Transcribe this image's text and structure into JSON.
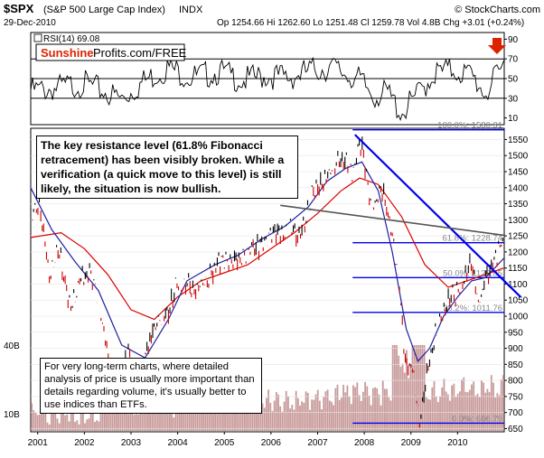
{
  "header": {
    "ticker": "$SPX",
    "name": "(S&P 500 Large Cap Index)",
    "exchange": "INDX",
    "date": "29-Dec-2010",
    "ohlc": "Op 1254.66 Hi 1262.60 Lo 1251.48 Cl 1259.78 Vol 4.8B Chg +3.01 (+0.24%)",
    "copyright": "© StockCharts.com"
  },
  "watermark": {
    "brand": "Sunshine",
    "rest": "Profits.com/FREE"
  },
  "colors": {
    "price_up": "#000000",
    "price_down": "#cc0000",
    "ma_red": "#dd0000",
    "ma_blue": "#2020a0",
    "trend_blue": "#0000ee",
    "volume": "#c89a9a",
    "arrow": "#dd2200"
  },
  "notes": {
    "top": "The key resistance level (61.8% Fibonacci retracement) has been visibly broken. While a verification (a quick  move to this level) is still likely, the situation is now bullish.",
    "bottom": "For very long-term charts, where detailed analysis of price is usually more important than details regarding volume, it's usually better to use indices than ETFs."
  },
  "chart_data": [
    {
      "type": "line",
      "title": "RSI(14) 69.08",
      "y_ticks": [
        10,
        30,
        50,
        70,
        90
      ],
      "ylim": [
        5,
        95
      ],
      "reference_levels": [
        30,
        50,
        70
      ],
      "x": [
        2001.0,
        2001.5,
        2002.0,
        2002.5,
        2002.8,
        2003.3,
        2003.8,
        2004.3,
        2004.9,
        2005.4,
        2005.9,
        2006.4,
        2006.9,
        2007.3,
        2007.6,
        2007.9,
        2008.2,
        2008.5,
        2008.8,
        2009.1,
        2009.5,
        2009.9,
        2010.3,
        2010.6,
        2010.99
      ],
      "values": [
        45,
        48,
        52,
        42,
        36,
        55,
        68,
        58,
        64,
        55,
        60,
        58,
        66,
        68,
        62,
        55,
        40,
        42,
        22,
        38,
        62,
        66,
        60,
        42,
        69.08
      ]
    },
    {
      "type": "line",
      "title": "",
      "y_ticks": [
        650,
        700,
        750,
        800,
        850,
        900,
        950,
        1000,
        1050,
        1100,
        1150,
        1200,
        1250,
        1300,
        1350,
        1400,
        1450,
        1500,
        1550
      ],
      "ylim": [
        640,
        1585
      ],
      "x_ticks": [
        "2001",
        "2002",
        "2003",
        "2004",
        "2005",
        "2006",
        "2007",
        "2008",
        "2009",
        "2010"
      ],
      "xlim": [
        2000.85,
        2011.0
      ],
      "volume_label": "40B",
      "volume_label_low": "10B",
      "series": [
        {
          "x": [
            2000.85,
            2001.05,
            2001.25,
            2001.45,
            2001.7,
            2001.9,
            2002.1,
            2002.3,
            2002.55,
            2002.8,
            2002.95,
            2003.15,
            2003.3,
            2003.5,
            2003.8,
            2004.0,
            2004.3,
            2004.6,
            2004.9,
            2005.2,
            2005.5,
            2005.8,
            2006.1,
            2006.4,
            2006.6,
            2006.9,
            2007.1,
            2007.3,
            2007.55,
            2007.75,
            2007.95,
            2008.15,
            2008.4,
            2008.6,
            2008.75,
            2008.87,
            2009.05,
            2009.19,
            2009.35,
            2009.55,
            2009.8,
            2010.05,
            2010.3,
            2010.45,
            2010.55,
            2010.75,
            2010.99
          ],
          "values": [
            1330,
            1360,
            1160,
            1230,
            1040,
            1120,
            1150,
            1060,
            850,
            820,
            900,
            820,
            870,
            990,
            1030,
            1130,
            1110,
            1120,
            1190,
            1170,
            1210,
            1240,
            1270,
            1290,
            1260,
            1400,
            1440,
            1480,
            1510,
            1465,
            1550,
            1340,
            1400,
            1260,
            1100,
            880,
            850,
            680,
            850,
            980,
            1070,
            1100,
            1200,
            1050,
            1100,
            1180,
            1259.78
          ]
        },
        {
          "x": [
            2000.85,
            2001.5,
            2002.0,
            2002.5,
            2003.0,
            2003.5,
            2004.0,
            2004.5,
            2005.0,
            2005.5,
            2006.0,
            2006.5,
            2007.0,
            2007.5,
            2007.9,
            2008.3,
            2008.8,
            2009.3,
            2009.8,
            2010.2,
            2010.6,
            2010.99
          ],
          "values": [
            1245,
            1260,
            1210,
            1130,
            1020,
            990,
            1060,
            1110,
            1135,
            1160,
            1210,
            1260,
            1320,
            1390,
            1430,
            1410,
            1310,
            1160,
            1090,
            1110,
            1130,
            1150
          ]
        },
        {
          "x": [
            2000.85,
            2001.3,
            2001.8,
            2002.3,
            2002.8,
            2003.3,
            2003.8,
            2004.2,
            2004.8,
            2005.3,
            2005.8,
            2006.3,
            2006.8,
            2007.2,
            2007.6,
            2007.95,
            2008.3,
            2008.6,
            2008.9,
            2009.15,
            2009.4,
            2009.7,
            2010.0,
            2010.3,
            2010.6,
            2010.99
          ],
          "values": [
            1400,
            1270,
            1170,
            1080,
            910,
            870,
            990,
            1110,
            1160,
            1190,
            1240,
            1280,
            1340,
            1420,
            1460,
            1480,
            1390,
            1200,
            960,
            860,
            900,
            1000,
            1060,
            1110,
            1120,
            1180
          ]
        }
      ],
      "fibonacci": [
        {
          "label": "100.0%: 1580.31",
          "value": 1580.31
        },
        {
          "label": "61.8%: 1228.74",
          "value": 1228.74
        },
        {
          "label": "50.0%: 1120.05",
          "value": 1120.05
        },
        {
          "label": "38.2%: 1011.76",
          "value": 1011.76
        },
        {
          "label": "0.0%: 666.79",
          "value": 666.79
        }
      ],
      "trendlines": [
        {
          "x": [
            2007.8,
            2011.35
          ],
          "values": [
            1565,
            1060
          ]
        },
        {
          "x": [
            2006.2,
            2010.99
          ],
          "values": [
            1345,
            1252
          ]
        }
      ]
    }
  ]
}
